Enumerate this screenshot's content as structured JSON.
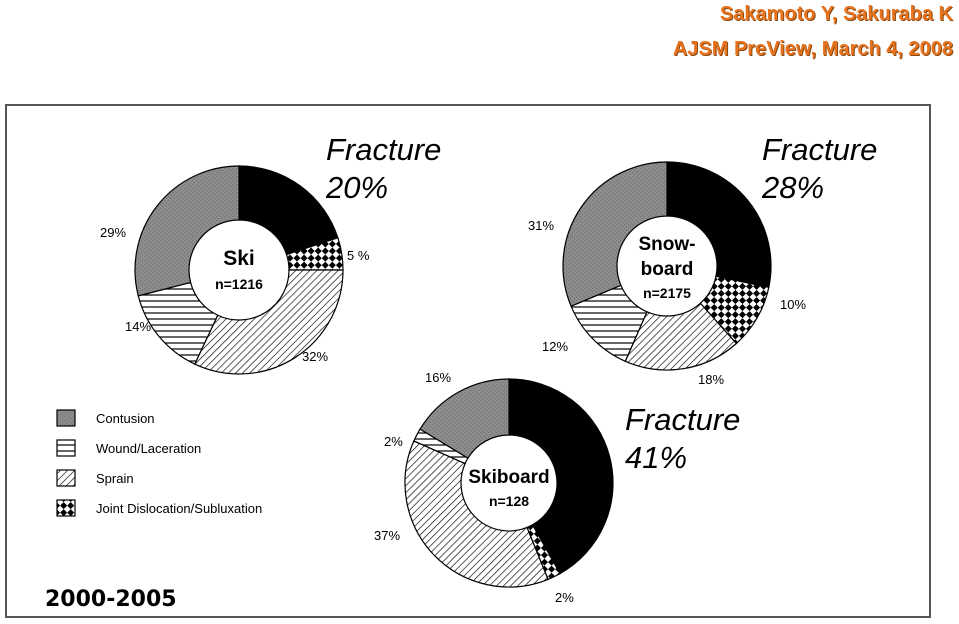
{
  "citation": {
    "line1": "Sakamoto Y, Sakuraba K",
    "line2": "AJSM PreView, March 4, 2008"
  },
  "period_label": "2000-2005",
  "legend": [
    {
      "label": "Contusion",
      "pattern": "gray"
    },
    {
      "label": "Wound/Laceration",
      "pattern": "horizontal-lines"
    },
    {
      "label": "Sprain",
      "pattern": "diagonal-hatch"
    },
    {
      "label": "Joint Dislocation/Subluxation",
      "pattern": "checker"
    }
  ],
  "chart_data": [
    {
      "type": "pie",
      "center_label": [
        "Ski"
      ],
      "n_label": "n=1216",
      "slices": [
        {
          "name": "Fracture",
          "value": 20,
          "pattern": "black",
          "label": "Fracture 20%"
        },
        {
          "name": "Joint Dislocation/Subluxation",
          "value": 5,
          "pattern": "checker",
          "label": "5 %"
        },
        {
          "name": "Sprain",
          "value": 32,
          "pattern": "diagonal-hatch",
          "label": "32%"
        },
        {
          "name": "Wound/Laceration",
          "value": 14,
          "pattern": "horizontal-lines",
          "label": "14%"
        },
        {
          "name": "Contusion",
          "value": 29,
          "pattern": "gray",
          "label": "29%"
        }
      ]
    },
    {
      "type": "pie",
      "center_label": [
        "Snow-",
        "board"
      ],
      "n_label": "n=2175",
      "slices": [
        {
          "name": "Fracture",
          "value": 28,
          "pattern": "black",
          "label": "Fracture 28%"
        },
        {
          "name": "Joint Dislocation/Subluxation",
          "value": 10,
          "pattern": "checker",
          "label": "10%"
        },
        {
          "name": "Sprain",
          "value": 18,
          "pattern": "diagonal-hatch",
          "label": "18%"
        },
        {
          "name": "Wound/Laceration",
          "value": 12,
          "pattern": "horizontal-lines",
          "label": "12%"
        },
        {
          "name": "Contusion",
          "value": 31,
          "pattern": "gray",
          "label": "31%"
        }
      ]
    },
    {
      "type": "pie",
      "center_label": [
        "Skiboard"
      ],
      "n_label": "n=128",
      "slices": [
        {
          "name": "Fracture",
          "value": 41,
          "pattern": "black",
          "label": "Fracture 41%"
        },
        {
          "name": "Joint Dislocation/Subluxation",
          "value": 2,
          "pattern": "checker",
          "label": "2%"
        },
        {
          "name": "Sprain",
          "value": 37,
          "pattern": "diagonal-hatch",
          "label": "37%"
        },
        {
          "name": "Wound/Laceration",
          "value": 2,
          "pattern": "horizontal-lines",
          "label": "2%"
        },
        {
          "name": "Contusion",
          "value": 16,
          "pattern": "gray",
          "label": "16%"
        }
      ]
    }
  ]
}
